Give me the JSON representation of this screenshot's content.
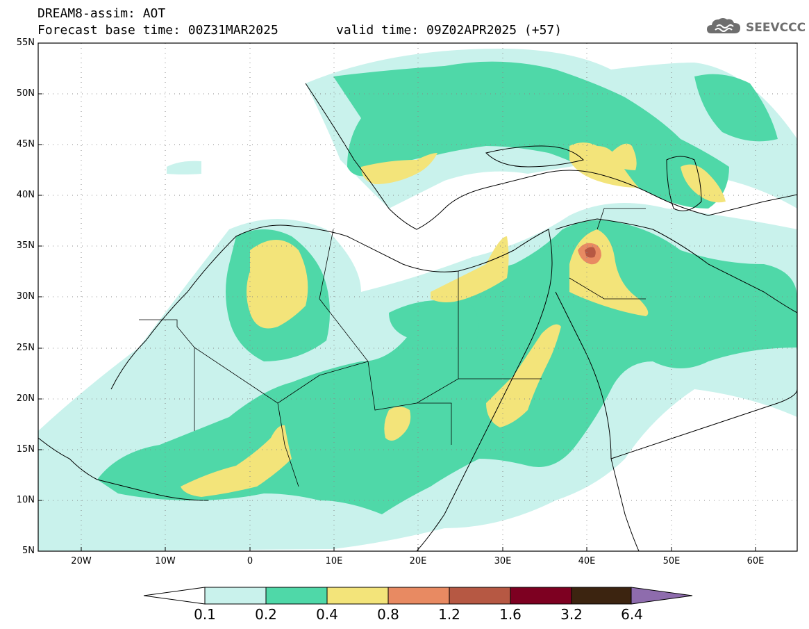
{
  "header": {
    "title": "DREAM8-assim: AOT",
    "base_time": "Forecast base time: 00Z31MAR2025",
    "valid_time": "valid time: 09Z02APR2025 (+57)"
  },
  "logo": {
    "text": "SEEVCCC"
  },
  "axes": {
    "lat_labels": [
      "55N",
      "50N",
      "45N",
      "40N",
      "35N",
      "30N",
      "25N",
      "20N",
      "15N",
      "10N",
      "5N"
    ],
    "lon_labels": [
      "20W",
      "10W",
      "0",
      "10E",
      "20E",
      "30E",
      "40E",
      "50E",
      "60E"
    ],
    "lon_range": [
      -25,
      65
    ],
    "lat_range": [
      5,
      55
    ],
    "grid": "dotted"
  },
  "colorbar": {
    "labels": [
      "0.1",
      "0.2",
      "0.4",
      "0.8",
      "1.2",
      "1.6",
      "3.2",
      "6.4"
    ],
    "colors": {
      "c01": "#c9f2ec",
      "c02": "#4fd8a8",
      "c04": "#f3e47a",
      "c08": "#e88a62",
      "c12": "#b65843",
      "c16": "#7d0021",
      "c32": "#3c2410",
      "c64": "#8e6cad"
    }
  }
}
